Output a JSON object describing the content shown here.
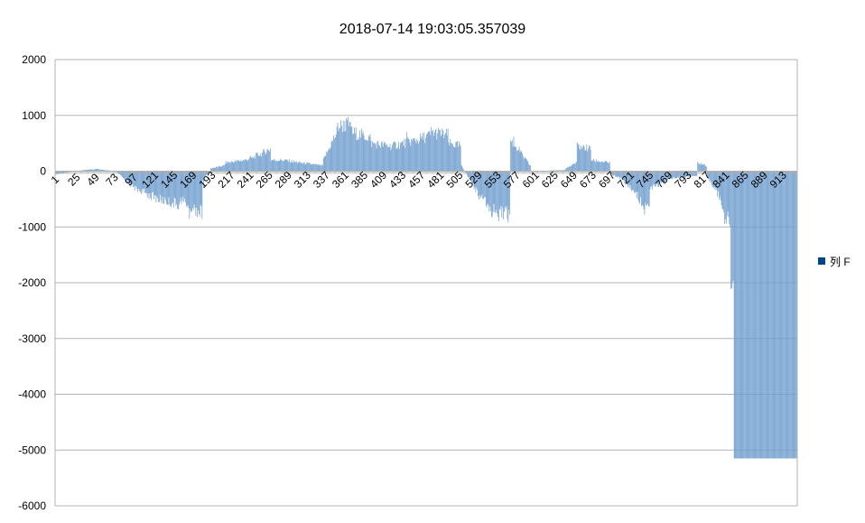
{
  "chart_data": {
    "type": "bar",
    "title": "2018-07-14 19:03:05.357039",
    "xlabel": "",
    "ylabel": "",
    "ylim": [
      -6000,
      2000
    ],
    "yticks": [
      2000,
      1000,
      0,
      -1000,
      -2000,
      -3000,
      -4000,
      -5000,
      -6000
    ],
    "ytick_labels": [
      "2000",
      "1000",
      "0",
      "-1000",
      "-2000",
      "-3000",
      "-4000",
      "-5000",
      "-6000"
    ],
    "xtick_labels": [
      "1",
      "25",
      "49",
      "73",
      "97",
      "121",
      "145",
      "169",
      "193",
      "217",
      "241",
      "265",
      "289",
      "313",
      "337",
      "361",
      "385",
      "409",
      "433",
      "457",
      "481",
      "505",
      "529",
      "553",
      "577",
      "601",
      "625",
      "649",
      "673",
      "697",
      "721",
      "745",
      "769",
      "793",
      "817",
      "841",
      "865",
      "889",
      "913"
    ],
    "grid": "horizontal",
    "legend_position": "right",
    "colors": {
      "bar": "#729fcf",
      "legend_marker": "#004586",
      "grid": "#b3b3b3",
      "axis": "#b3b3b3"
    },
    "series": [
      {
        "name": "列 F",
        "count": 936,
        "x_start": 1,
        "segments": [
          {
            "from": 1,
            "to": 24,
            "start": -60,
            "end": 0
          },
          {
            "from": 25,
            "to": 52,
            "start": 0,
            "end": 40
          },
          {
            "from": 53,
            "to": 76,
            "start": 40,
            "end": 0
          },
          {
            "from": 77,
            "to": 100,
            "start": 0,
            "end": -300
          },
          {
            "from": 101,
            "to": 130,
            "start": -300,
            "end": -500
          },
          {
            "from": 131,
            "to": 158,
            "start": -500,
            "end": -600
          },
          {
            "from": 159,
            "to": 172,
            "start": -500,
            "end": -650
          },
          {
            "from": 173,
            "to": 186,
            "start": -650,
            "end": -750
          },
          {
            "from": 187,
            "to": 196,
            "start": -150,
            "end": 0
          },
          {
            "from": 197,
            "to": 214,
            "start": 50,
            "end": 100
          },
          {
            "from": 215,
            "to": 240,
            "start": 150,
            "end": 200
          },
          {
            "from": 241,
            "to": 258,
            "start": 200,
            "end": 300
          },
          {
            "from": 259,
            "to": 272,
            "start": 300,
            "end": 400
          },
          {
            "from": 273,
            "to": 288,
            "start": 200,
            "end": 200
          },
          {
            "from": 289,
            "to": 310,
            "start": 200,
            "end": 150
          },
          {
            "from": 311,
            "to": 338,
            "start": 150,
            "end": 100
          },
          {
            "from": 339,
            "to": 356,
            "start": 200,
            "end": 700
          },
          {
            "from": 357,
            "to": 374,
            "start": 800,
            "end": 850
          },
          {
            "from": 375,
            "to": 398,
            "start": 700,
            "end": 600
          },
          {
            "from": 399,
            "to": 424,
            "start": 500,
            "end": 450
          },
          {
            "from": 425,
            "to": 454,
            "start": 450,
            "end": 550
          },
          {
            "from": 455,
            "to": 474,
            "start": 550,
            "end": 650
          },
          {
            "from": 475,
            "to": 496,
            "start": 700,
            "end": 650
          },
          {
            "from": 497,
            "to": 512,
            "start": 500,
            "end": 450
          },
          {
            "from": 513,
            "to": 532,
            "start": 100,
            "end": -350
          },
          {
            "from": 533,
            "to": 548,
            "start": -400,
            "end": -650
          },
          {
            "from": 549,
            "to": 574,
            "start": -700,
            "end": -750
          },
          {
            "from": 575,
            "to": 588,
            "start": 550,
            "end": 350
          },
          {
            "from": 589,
            "to": 600,
            "start": 300,
            "end": 100
          },
          {
            "from": 601,
            "to": 644,
            "start": 0,
            "end": 20
          },
          {
            "from": 645,
            "to": 658,
            "start": 50,
            "end": 150
          },
          {
            "from": 659,
            "to": 676,
            "start": 450,
            "end": 400
          },
          {
            "from": 677,
            "to": 700,
            "start": 200,
            "end": 150
          },
          {
            "from": 701,
            "to": 718,
            "start": -50,
            "end": -150
          },
          {
            "from": 719,
            "to": 736,
            "start": -200,
            "end": -450
          },
          {
            "from": 737,
            "to": 750,
            "start": -550,
            "end": -650
          },
          {
            "from": 751,
            "to": 770,
            "start": -300,
            "end": -200
          },
          {
            "from": 771,
            "to": 810,
            "start": -150,
            "end": -80
          },
          {
            "from": 811,
            "to": 822,
            "start": 150,
            "end": 100
          },
          {
            "from": 823,
            "to": 840,
            "start": -100,
            "end": -500
          },
          {
            "from": 841,
            "to": 852,
            "start": -700,
            "end": -900
          },
          {
            "from": 853,
            "to": 856,
            "start": -2000,
            "end": -2000
          },
          {
            "from": 857,
            "to": 936,
            "start": -5150,
            "end": -5150
          }
        ],
        "spikes": [
          {
            "x": 170,
            "value": -850
          },
          {
            "x": 178,
            "value": -800
          },
          {
            "x": 188,
            "value": -300
          },
          {
            "x": 250,
            "value": 230
          },
          {
            "x": 366,
            "value": 900
          },
          {
            "x": 372,
            "value": 880
          },
          {
            "x": 444,
            "value": 700
          },
          {
            "x": 560,
            "value": -900
          },
          {
            "x": 572,
            "value": -920
          },
          {
            "x": 579,
            "value": 620
          },
          {
            "x": 744,
            "value": -780
          },
          {
            "x": 845,
            "value": -950
          },
          {
            "x": 854,
            "value": -2100
          }
        ]
      }
    ]
  }
}
